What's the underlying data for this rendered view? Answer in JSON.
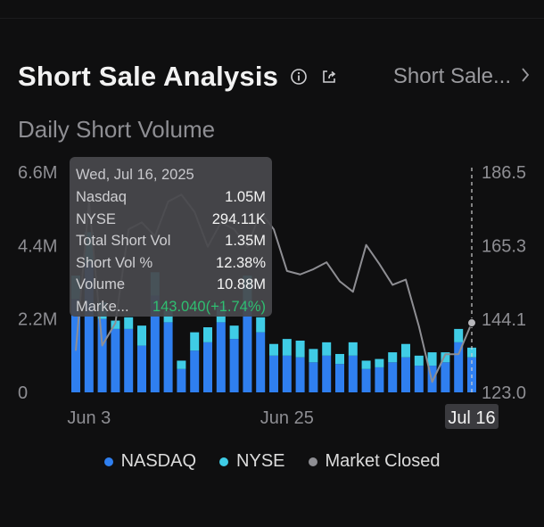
{
  "header": {
    "title": "Short Sale Analysis",
    "selector_label": "Short Sale..."
  },
  "subtitle": "Daily Short Volume",
  "icons": {
    "info": "info-icon",
    "share": "share-icon",
    "chevron": "chevron-right-icon"
  },
  "colors": {
    "nasdaq": "#2f7ff0",
    "nyse": "#3fcce6",
    "market_closed": "#8e8e93",
    "price_line": "#8e8e93",
    "gain": "#2fbf71"
  },
  "tooltip": {
    "date": "Wed, Jul 16, 2025",
    "rows": [
      {
        "label": "Nasdaq",
        "value": "1.05M"
      },
      {
        "label": "NYSE",
        "value": "294.11K"
      },
      {
        "label": "Total Short Vol",
        "value": "1.35M"
      },
      {
        "label": "Short Vol %",
        "value": "12.38%"
      },
      {
        "label": "Volume",
        "value": "10.88M"
      },
      {
        "label": "Marke...",
        "value": "143.040(+1.74%)"
      }
    ]
  },
  "legend": [
    {
      "label": "NASDAQ"
    },
    {
      "label": "NYSE"
    },
    {
      "label": "Market Closed"
    }
  ],
  "chart_data": {
    "type": "bar",
    "title": "Daily Short Volume",
    "stacked": true,
    "left_axis": {
      "min": 0,
      "max": 6.6,
      "ticks": [
        "0",
        "2.2M",
        "4.4M",
        "6.6M"
      ],
      "tick_values": [
        0,
        2.2,
        4.4,
        6.6
      ]
    },
    "right_axis": {
      "min": 123.0,
      "max": 186.5,
      "ticks": [
        "123.0",
        "144.1",
        "165.3",
        "186.5"
      ],
      "tick_values": [
        123.0,
        144.1,
        165.3,
        186.5
      ]
    },
    "x_ticks": [
      {
        "label": "Jun 3",
        "index": 1
      },
      {
        "label": "Jun 25",
        "index": 16
      },
      {
        "label": "Jul 16",
        "index": 30,
        "highlight": true
      }
    ],
    "series": [
      {
        "name": "NASDAQ",
        "values": [
          2.8,
          3.9,
          2.2,
          1.9,
          1.9,
          1.4,
          2.9,
          2.1,
          0.7,
          1.25,
          1.5,
          2.1,
          1.6,
          2.7,
          1.8,
          1.1,
          1.1,
          1.05,
          0.9,
          1.1,
          0.85,
          1.1,
          0.7,
          0.75,
          0.9,
          1.05,
          0.8,
          0.8,
          0.9,
          1.5,
          1.05
        ]
      },
      {
        "name": "NYSE",
        "values": [
          0.7,
          0.9,
          0.5,
          0.25,
          0.35,
          0.6,
          0.7,
          0.35,
          0.25,
          0.55,
          0.45,
          0.5,
          0.4,
          0.8,
          0.45,
          0.35,
          0.5,
          0.5,
          0.4,
          0.4,
          0.3,
          0.4,
          0.25,
          0.25,
          0.3,
          0.4,
          0.3,
          0.4,
          0.3,
          0.4,
          0.29
        ]
      }
    ],
    "price_series": {
      "name": "Market Closed",
      "values": [
        135,
        178,
        136.5,
        143,
        170,
        172,
        168,
        178,
        180,
        175,
        165,
        172,
        170,
        165,
        175,
        170,
        158,
        157,
        158.5,
        160.5,
        155,
        152,
        165.5,
        160,
        154,
        155.5,
        142,
        126,
        134,
        134,
        143.04
      ]
    }
  }
}
